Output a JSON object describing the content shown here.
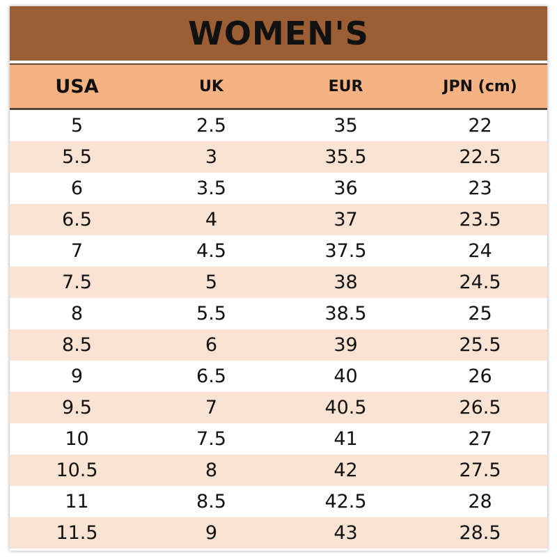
{
  "title": "WOMEN'S",
  "colors": {
    "title_bg": "#9c5f35",
    "header_bg": "#f5b283",
    "row_alt_bg": "#fbe3d3",
    "row_bg": "#ffffff"
  },
  "headers": [
    "USA",
    "UK",
    "EUR",
    "JPN (cm)"
  ],
  "rows": [
    [
      "5",
      "2.5",
      "35",
      "22"
    ],
    [
      "5.5",
      "3",
      "35.5",
      "22.5"
    ],
    [
      "6",
      "3.5",
      "36",
      "23"
    ],
    [
      "6.5",
      "4",
      "37",
      "23.5"
    ],
    [
      "7",
      "4.5",
      "37.5",
      "24"
    ],
    [
      "7.5",
      "5",
      "38",
      "24.5"
    ],
    [
      "8",
      "5.5",
      "38.5",
      "25"
    ],
    [
      "8.5",
      "6",
      "39",
      "25.5"
    ],
    [
      "9",
      "6.5",
      "40",
      "26"
    ],
    [
      "9.5",
      "7",
      "40.5",
      "26.5"
    ],
    [
      "10",
      "7.5",
      "41",
      "27"
    ],
    [
      "10.5",
      "8",
      "42",
      "27.5"
    ],
    [
      "11",
      "8.5",
      "42.5",
      "28"
    ],
    [
      "11.5",
      "9",
      "43",
      "28.5"
    ]
  ]
}
